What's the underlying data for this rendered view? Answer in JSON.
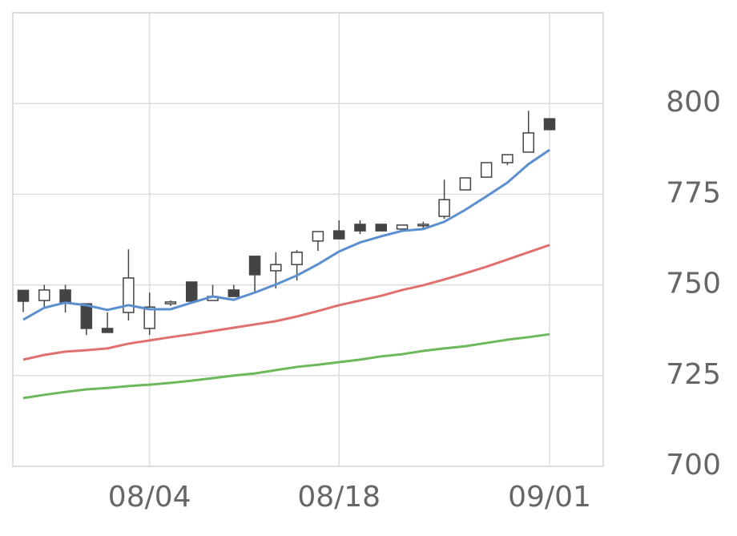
{
  "chart_data": {
    "type": "candlestick",
    "categories": [
      null,
      null,
      null,
      null,
      null,
      null,
      "08/04",
      null,
      null,
      null,
      null,
      null,
      null,
      null,
      null,
      "08/18",
      null,
      null,
      null,
      null,
      null,
      null,
      null,
      null,
      null,
      "09/01"
    ],
    "open": [
      748.5,
      745.7,
      748.6,
      744.8,
      738,
      742.4,
      738,
      744.8,
      750.8,
      745.7,
      748.6,
      757.9,
      753.9,
      755.6,
      762.1,
      764.9,
      766.7,
      766.7,
      765.4,
      766.3,
      768.9,
      776.2,
      779.7,
      783.7,
      786.6,
      795.8
    ],
    "high": [
      748.5,
      750,
      750,
      744.8,
      742.4,
      759.8,
      747.9,
      745.7,
      750.8,
      750,
      750,
      757.9,
      759,
      759.6,
      764.7,
      767.8,
      767.8,
      766.7,
      766.5,
      767.4,
      779,
      779.5,
      783.7,
      785.9,
      798,
      795.8
    ],
    "low": [
      742.5,
      744,
      742.4,
      736.2,
      736.9,
      740.2,
      736.2,
      744.2,
      745.5,
      745.7,
      746.8,
      747.9,
      749,
      751.2,
      759.4,
      762.7,
      764,
      764.9,
      765.4,
      765.6,
      768.2,
      776.2,
      779.7,
      783,
      786.6,
      792.8
    ],
    "close": [
      745.5,
      748.6,
      745,
      738,
      736.9,
      751.9,
      743.9,
      745.3,
      745.5,
      746.8,
      746.8,
      752.8,
      755.6,
      759,
      764.7,
      762.7,
      764.9,
      764.9,
      766.5,
      766.7,
      773.5,
      779.5,
      783.7,
      785.9,
      791.9,
      792.8
    ],
    "up_color": "#ffffff",
    "down_color": "#444444",
    "lines": [
      {
        "color": "#5b8fd0",
        "values": [
          740.4,
          743.7,
          745.1,
          744.4,
          743.1,
          744.4,
          743.3,
          743.3,
          745.1,
          746.8,
          745.9,
          747.9,
          750.1,
          752.6,
          755.7,
          759.2,
          761.7,
          763.4,
          764.9,
          765.4,
          767.4,
          770.7,
          774.4,
          778.2,
          783.3,
          787.2
        ]
      },
      {
        "color": "#e07070",
        "values": [
          729.4,
          730.7,
          731.6,
          732,
          732.5,
          733.8,
          734.7,
          735.6,
          736.4,
          737.3,
          738.2,
          739.1,
          740,
          741.3,
          742.8,
          744.4,
          745.7,
          747,
          748.6,
          749.9,
          751.5,
          753.2,
          755,
          757,
          759,
          761
        ]
      },
      {
        "color": "#6cb85a",
        "values": [
          718.8,
          719.7,
          720.5,
          721.2,
          721.6,
          722.1,
          722.5,
          723,
          723.6,
          724.3,
          725,
          725.6,
          726.5,
          727.4,
          728,
          728.7,
          729.4,
          730.3,
          730.9,
          731.8,
          732.5,
          733.1,
          734,
          734.9,
          735.6,
          736.4
        ]
      }
    ],
    "ylim": [
      700,
      825
    ],
    "yticks": [
      700,
      725,
      750,
      775,
      800
    ],
    "y_axis_side": "right",
    "grid": true
  }
}
